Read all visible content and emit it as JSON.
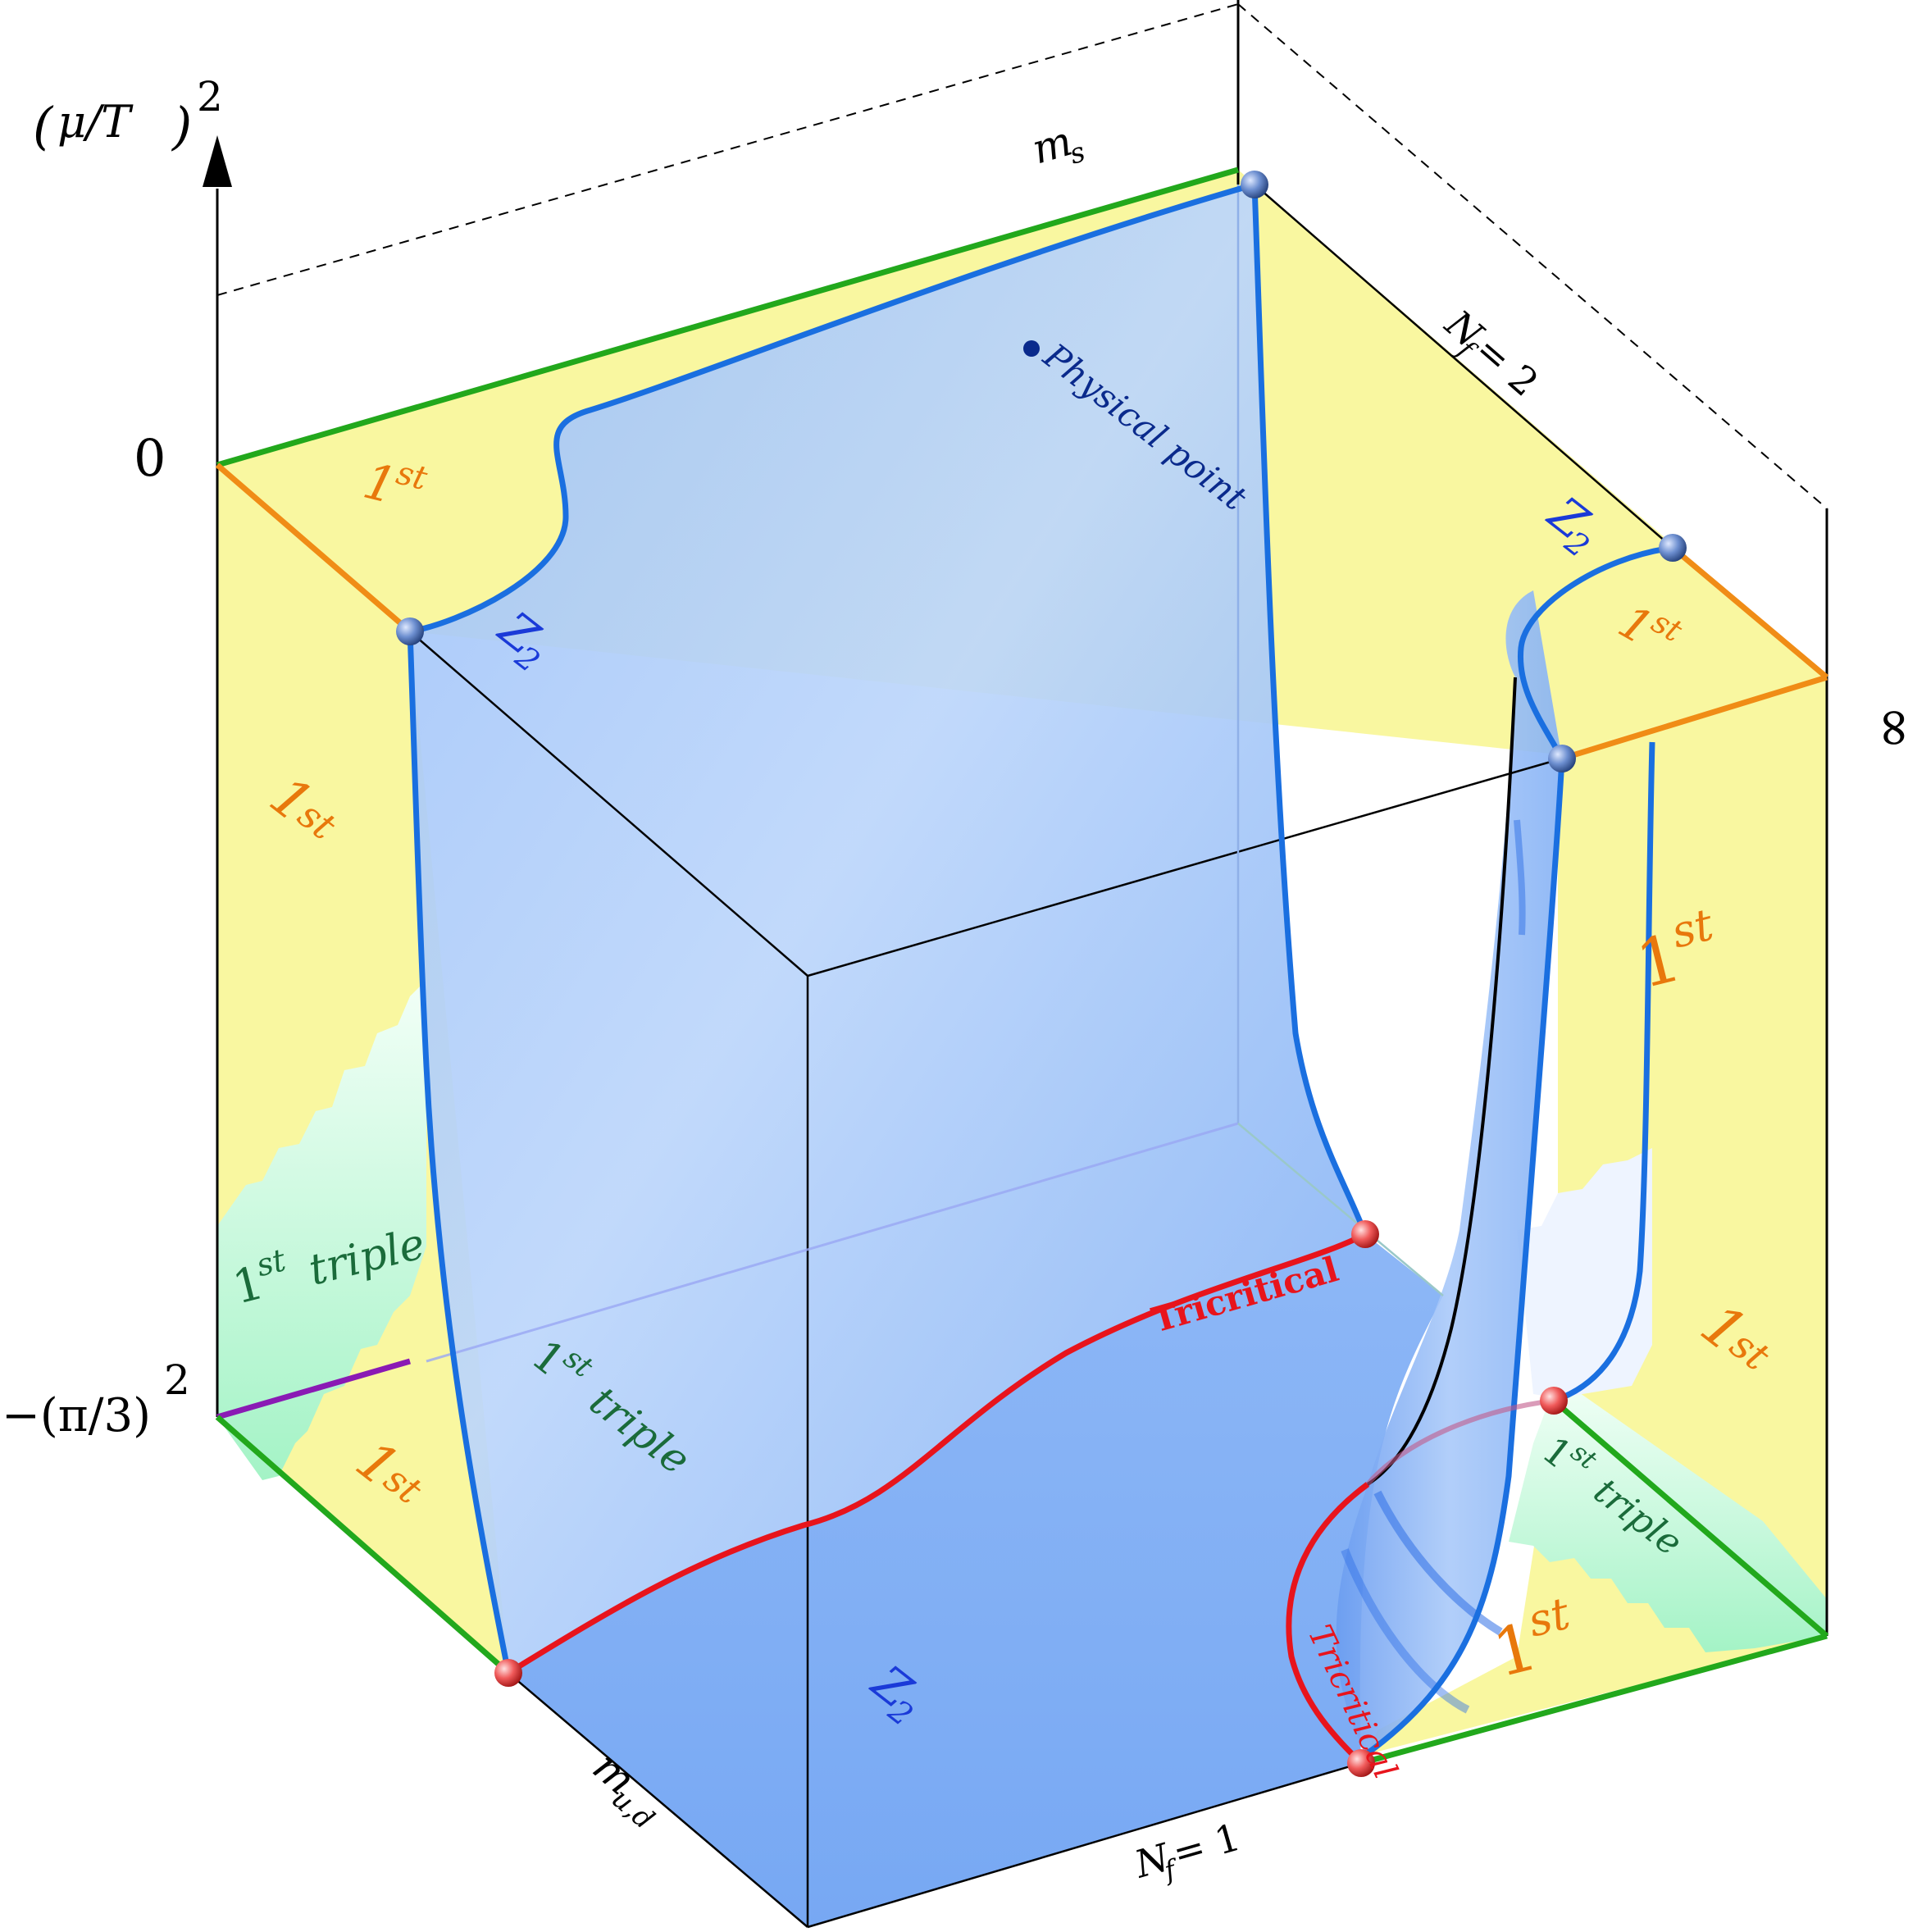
{
  "axes": {
    "vertical_label_base": "μ/T",
    "vertical_label_exp": "2",
    "tick_zero": "0",
    "tick_lower": "−(π/3)",
    "tick_lower_exp": "2",
    "edge_ms": "m",
    "edge_ms_sub": "s",
    "edge_mud": "m",
    "edge_mud_sub": "u,d",
    "edge_nf2": "N",
    "edge_nf2_rest": " = 2",
    "edge_nf1": "N",
    "edge_nf1_rest": " = 1",
    "edge_f": "f",
    "infinity": "∞"
  },
  "regions": {
    "first": "1",
    "first_sup": "st",
    "triple": "triple",
    "z2": "Z",
    "z2_sub": "2",
    "tricritical": "Tricritical",
    "physical_point": "Physical point"
  },
  "colors": {
    "surface_blue": "#7fb0f5",
    "surface_light": "#c9ddfb",
    "first_order_yellow": "#f9f7a0",
    "triple_green": "#a8f5c8",
    "critical_line_blue": "#1a6fe0",
    "tricritical_red": "#e8141c",
    "first_order_edge_orange": "#f08c16",
    "green_edge": "#22a81c",
    "purple_edge": "#8a1ab4",
    "region_label_orange": "#e8780c",
    "triple_label_green": "#1a6b3a",
    "z2_label_blue": "#1a3ad8"
  }
}
